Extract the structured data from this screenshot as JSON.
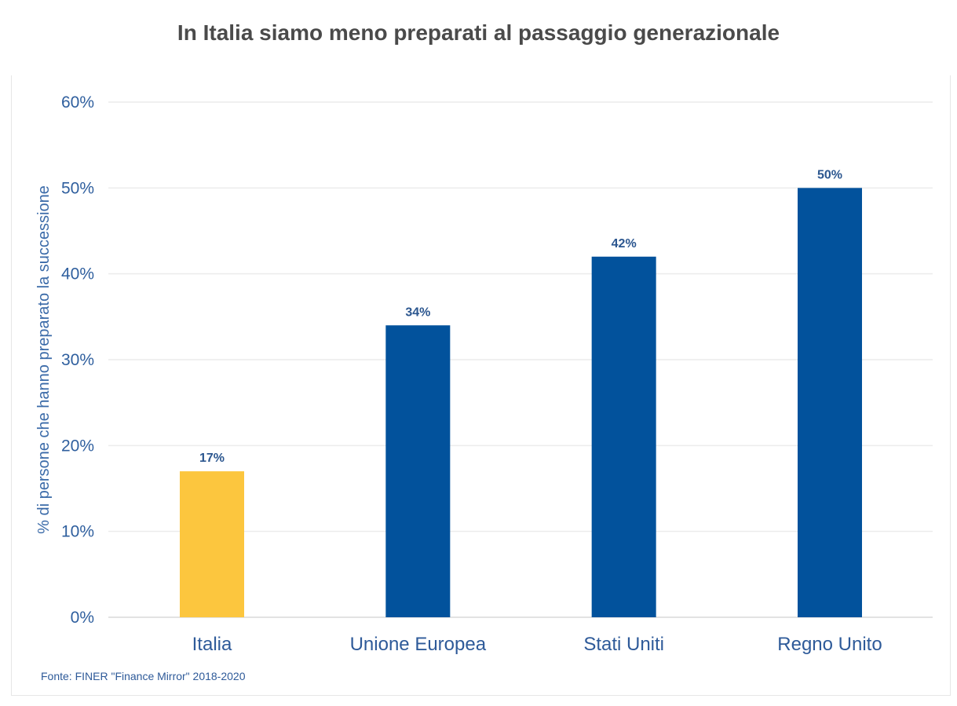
{
  "chart_data": {
    "type": "bar",
    "title": "In Italia siamo meno preparati al passaggio generazionale",
    "ylabel": "% di persone che hanno preparato la successione",
    "xlabel": "",
    "categories": [
      "Italia",
      "Unione Europea",
      "Stati Uniti",
      "Regno Unito"
    ],
    "values": [
      17,
      34,
      42,
      50
    ],
    "value_labels": [
      "17%",
      "34%",
      "42%",
      "50%"
    ],
    "bar_colors": [
      "#fcc63e",
      "#02529c",
      "#02529c",
      "#02529c"
    ],
    "ylim": [
      0,
      60
    ],
    "yticks": [
      0,
      10,
      20,
      30,
      40,
      50,
      60
    ],
    "ytick_labels": [
      "0%",
      "10%",
      "20%",
      "30%",
      "40%",
      "50%",
      "60%"
    ],
    "grid": true,
    "source": "Fonte: FINER \"Finance Mirror\" 2018-2020"
  }
}
